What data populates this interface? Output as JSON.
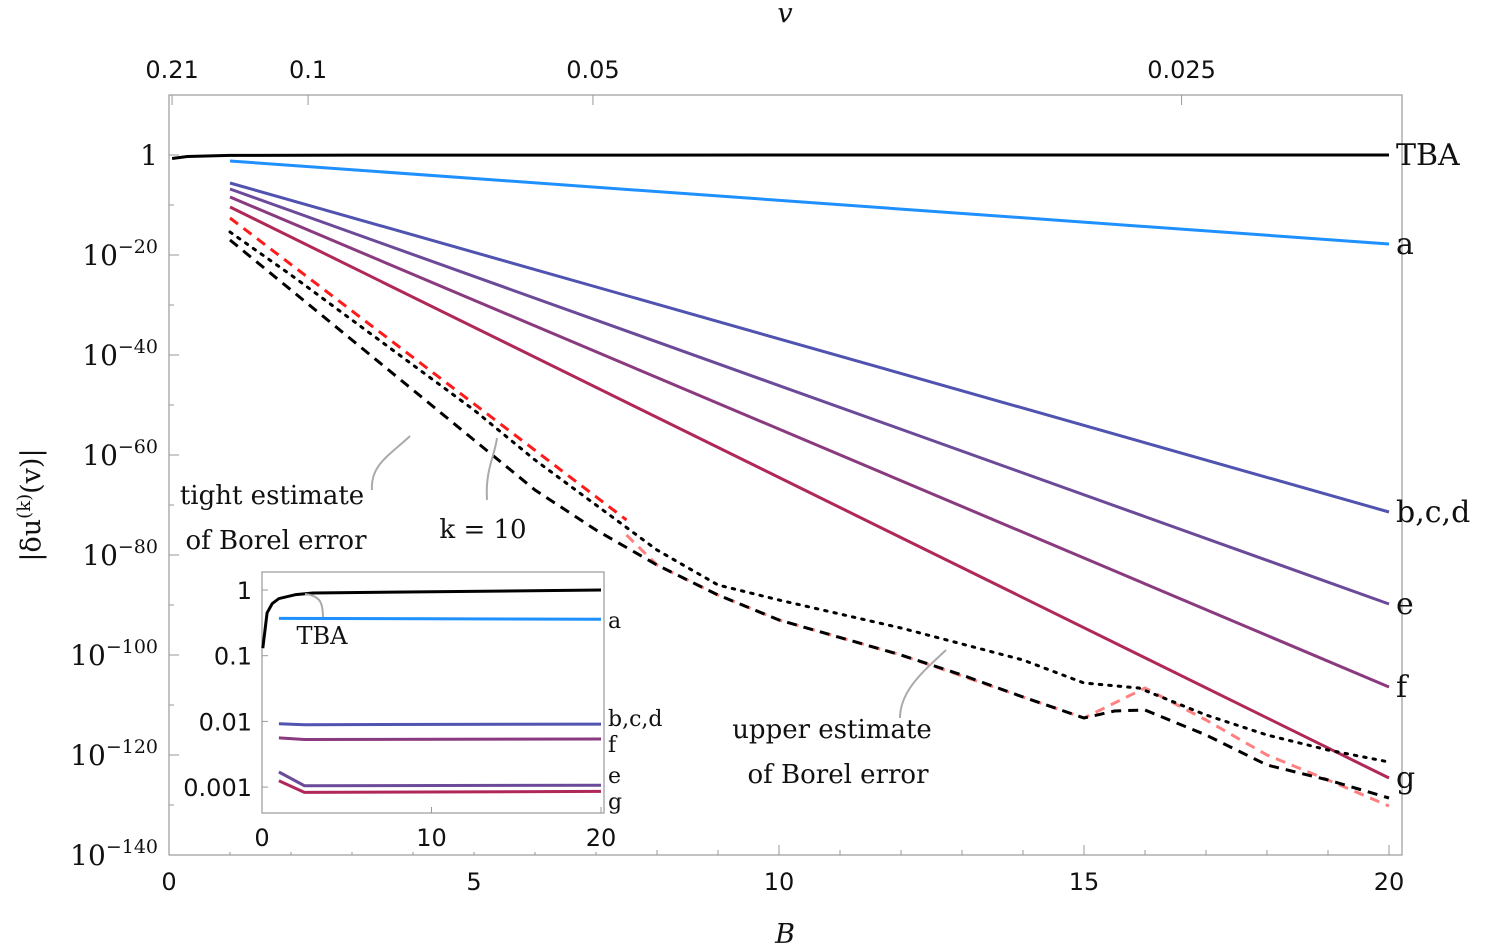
{
  "chart_data": [
    {
      "type": "line",
      "xlabel": "B",
      "x2label": "v",
      "ylabel": "|δu(k)(v)|",
      "ylabel_parts": {
        "pre": "|δu",
        "sup": "(k)",
        "post": "(v)|"
      },
      "xlim": [
        0,
        20
      ],
      "ylim_log10": [
        -140,
        4
      ],
      "yscale": "log",
      "x_ticks": [
        "0",
        "5",
        "10",
        "15",
        "20"
      ],
      "y_ticks": [
        {
          "exp": 0,
          "label": "1",
          "sup": ""
        },
        {
          "exp": -20,
          "label": "10",
          "sup": "−20"
        },
        {
          "exp": -40,
          "label": "10",
          "sup": "−40"
        },
        {
          "exp": -60,
          "label": "10",
          "sup": "−60"
        },
        {
          "exp": -80,
          "label": "10",
          "sup": "−80"
        },
        {
          "exp": -100,
          "label": "10",
          "sup": "−100"
        },
        {
          "exp": -120,
          "label": "10",
          "sup": "−120"
        },
        {
          "exp": -140,
          "label": "10",
          "sup": "−140"
        }
      ],
      "top_ticks": [
        {
          "label": "0.21",
          "B": 0.05
        },
        {
          "label": "0.1",
          "B": 2.28
        },
        {
          "label": "0.05",
          "B": 6.95
        },
        {
          "label": "0.025",
          "B": 16.6
        }
      ],
      "series": [
        {
          "name": "TBA",
          "color": "#000000",
          "style": "solid",
          "x": [
            0.05,
            0.3,
            1,
            3,
            20
          ],
          "log10_y": [
            -0.7,
            -0.3,
            -0.08,
            -0.02,
            0
          ]
        },
        {
          "name": "a",
          "color": "#1e90ff",
          "style": "solid",
          "x": [
            1,
            20
          ],
          "log10_y": [
            -1.2,
            -17.8
          ]
        },
        {
          "name": "b,c,d",
          "color": "#5054b0",
          "style": "solid",
          "x": [
            1,
            20
          ],
          "log10_y": [
            -5.6,
            -71.4
          ]
        },
        {
          "name": "e",
          "color": "#6c4a9a",
          "style": "solid",
          "x": [
            1,
            20
          ],
          "log10_y": [
            -6.8,
            -89.8
          ]
        },
        {
          "name": "f",
          "color": "#8a3a7e",
          "style": "solid",
          "x": [
            1,
            20
          ],
          "log10_y": [
            -8.4,
            -106.4
          ]
        },
        {
          "name": "g",
          "color": "#b0285a",
          "style": "solid",
          "x": [
            1,
            20
          ],
          "log10_y": [
            -10.4,
            -124.6
          ]
        },
        {
          "name": "",
          "color": "#ff1a1a",
          "style": "dashed",
          "x": [
            1,
            7.5
          ],
          "log10_y": [
            -12.6,
            -73
          ]
        },
        {
          "name": "",
          "color": "#ff8080",
          "style": "dashed",
          "x": [
            7.5,
            8,
            9,
            10,
            12,
            14,
            15,
            16,
            17,
            18,
            19,
            20
          ],
          "log10_y": [
            -76,
            -82,
            -88,
            -93,
            -100,
            -108.4,
            -112.6,
            -106.6,
            -113,
            -120,
            -125,
            -130.2
          ]
        },
        {
          "name": "",
          "color": "#000000",
          "style": "dashed",
          "x": [
            1,
            2,
            3,
            4,
            5,
            6,
            7,
            8,
            9,
            10,
            12,
            13,
            14,
            15,
            15.5,
            16,
            17,
            18,
            19,
            20
          ],
          "log10_y": [
            -17,
            -27,
            -37,
            -47,
            -57,
            -67,
            -75,
            -82,
            -88,
            -93,
            -100,
            -104,
            -108.4,
            -112.6,
            -111.2,
            -111,
            -116,
            -122,
            -125,
            -128.6
          ]
        },
        {
          "name": "",
          "color": "#000000",
          "style": "dotted",
          "x": [
            1,
            2,
            3,
            4,
            5,
            6,
            7,
            8,
            9,
            10,
            12,
            14,
            15,
            15.9,
            17,
            18,
            19,
            20
          ],
          "log10_y": [
            -15.4,
            -24,
            -33,
            -42,
            -51,
            -61,
            -70,
            -79,
            -86,
            -89,
            -94.6,
            -101,
            -105.6,
            -106.6,
            -112,
            -116,
            -119,
            -121.4
          ]
        }
      ],
      "annotations": [
        {
          "lines": [
            "tight estimate",
            "of Borel error"
          ]
        },
        {
          "lines": [
            "k = 10"
          ]
        },
        {
          "lines": [
            "upper estimate",
            "of Borel error"
          ]
        }
      ]
    },
    {
      "type": "line",
      "yscale": "log",
      "xlim": [
        0,
        20
      ],
      "x_ticks": [
        "0",
        "10",
        "20"
      ],
      "y_ticks": [
        "1",
        "0.1",
        "0.01",
        "0.001"
      ],
      "series": [
        {
          "name": "TBA",
          "color": "#000000",
          "x": [
            0.05,
            0.3,
            0.6,
            1,
            2,
            3,
            20
          ],
          "y": [
            0.13,
            0.45,
            0.62,
            0.74,
            0.85,
            0.9,
            1.0
          ]
        },
        {
          "name": "a",
          "color": "#1e90ff",
          "x": [
            1,
            20
          ],
          "y": [
            0.37,
            0.36
          ]
        },
        {
          "name": "b,c,d",
          "color": "#5054b0",
          "x": [
            1,
            2.5,
            20
          ],
          "y": [
            0.0092,
            0.0089,
            0.0091
          ]
        },
        {
          "name": "f",
          "color": "#8a3a7e",
          "x": [
            1,
            2.5,
            20
          ],
          "y": [
            0.0056,
            0.0053,
            0.0054
          ]
        },
        {
          "name": "e",
          "color": "#6c4a9a",
          "x": [
            1,
            2.5,
            20
          ],
          "y": [
            0.0017,
            0.00105,
            0.00107
          ]
        },
        {
          "name": "g",
          "color": "#b0285a",
          "x": [
            1,
            2.5,
            20
          ],
          "y": [
            0.00125,
            0.00083,
            0.00086
          ]
        }
      ]
    }
  ]
}
